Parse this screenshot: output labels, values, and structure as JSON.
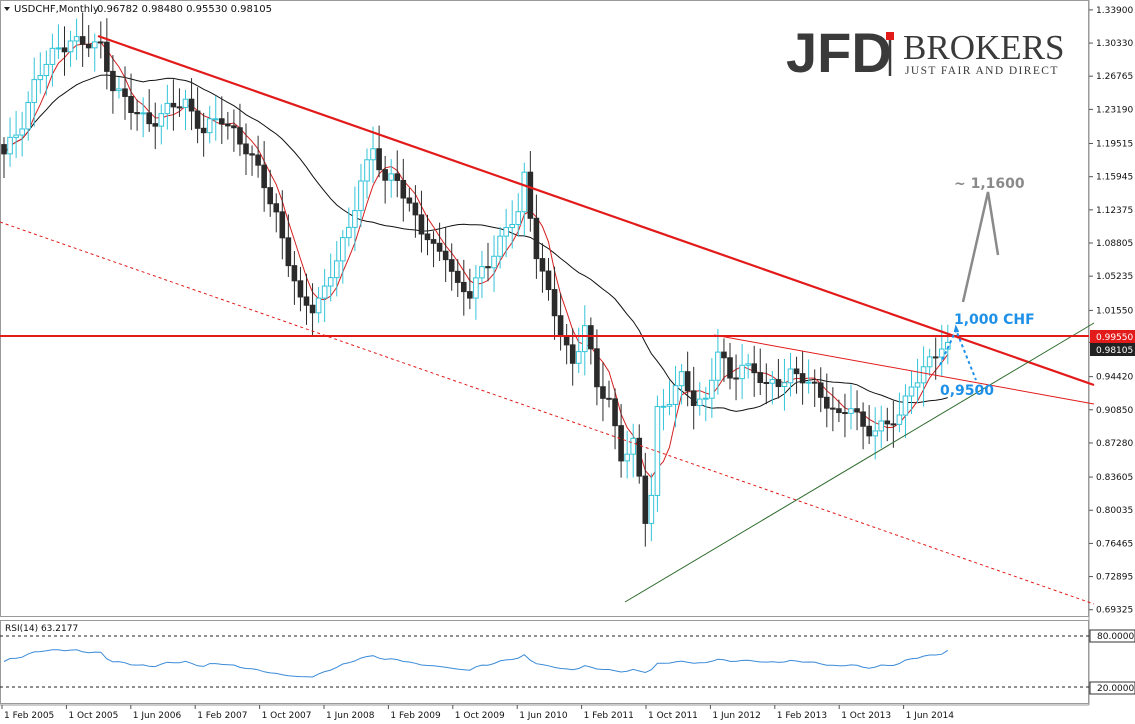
{
  "header": {
    "symbol_text": "USDCHF,Monthly",
    "ohlc_text": "0.96782 0.98480 0.95530 0.98105"
  },
  "logo": {
    "mark": "JFD",
    "name": "BROKERS",
    "tagline": "JUST FAIR AND DIRECT"
  },
  "colors": {
    "bull": "#33c4d8",
    "bear": "#2b2b2b",
    "resistance": "#e21a1a",
    "ma_fast": "#d42020",
    "ma_slow": "#111111",
    "support": "#2e6b2e",
    "rsi": "#3a8bd8",
    "annotation_blue": "#1e90e8",
    "annotation_gray": "#8a8a8a"
  },
  "chart_data": {
    "type": "candlestick",
    "price_axis": {
      "ticks": [
        "1.33900",
        "1.30330",
        "1.26765",
        "1.23190",
        "1.19515",
        "1.15945",
        "1.12375",
        "1.08805",
        "1.05235",
        "1.01550",
        "0.98105",
        "0.94420",
        "0.90850",
        "0.87280",
        "0.83605",
        "0.80035",
        "0.76465",
        "0.72895",
        "0.69325"
      ],
      "range": [
        0.6865,
        1.3475
      ],
      "marked_levels": [
        {
          "label": "0.99550",
          "value": 0.9955,
          "color": "#e21a1a"
        },
        {
          "label": "0.98105",
          "value": 0.98105,
          "color": "#222222"
        }
      ]
    },
    "time_axis": {
      "labels": [
        "1 Feb 2005",
        "1 Oct 2005",
        "1 Jun 2006",
        "1 Feb 2007",
        "1 Oct 2007",
        "1 Jun 2008",
        "1 Feb 2009",
        "1 Oct 2009",
        "1 Jun 2010",
        "1 Feb 2011",
        "1 Oct 2011",
        "1 Jun 2012",
        "1 Feb 2013",
        "1 Oct 2013",
        "1 Jun 2014"
      ]
    },
    "path_points": [
      [
        0,
        1.18
      ],
      [
        3,
        1.22
      ],
      [
        5,
        1.26
      ],
      [
        8,
        1.29
      ],
      [
        11,
        1.31
      ],
      [
        13,
        1.3
      ],
      [
        16,
        1.3
      ],
      [
        18,
        1.26
      ],
      [
        21,
        1.23
      ],
      [
        24,
        1.22
      ],
      [
        27,
        1.23
      ],
      [
        30,
        1.24
      ],
      [
        33,
        1.21
      ],
      [
        36,
        1.22
      ],
      [
        38,
        1.21
      ],
      [
        40,
        1.19
      ],
      [
        43,
        1.15
      ],
      [
        45,
        1.12
      ],
      [
        47,
        1.07
      ],
      [
        49,
        1.02
      ],
      [
        51,
        1.02
      ],
      [
        53,
        1.04
      ],
      [
        55,
        1.07
      ],
      [
        57,
        1.1
      ],
      [
        59,
        1.16
      ],
      [
        61,
        1.19
      ],
      [
        63,
        1.15
      ],
      [
        65,
        1.16
      ],
      [
        67,
        1.13
      ],
      [
        69,
        1.1
      ],
      [
        71,
        1.08
      ],
      [
        73,
        1.08
      ],
      [
        75,
        1.04
      ],
      [
        77,
        1.03
      ],
      [
        79,
        1.06
      ],
      [
        81,
        1.08
      ],
      [
        83,
        1.1
      ],
      [
        85,
        1.12
      ],
      [
        86,
        1.16
      ],
      [
        88,
        1.08
      ],
      [
        90,
        1.03
      ],
      [
        92,
        0.99
      ],
      [
        94,
        0.96
      ],
      [
        96,
        1.0
      ],
      [
        98,
        0.93
      ],
      [
        100,
        0.92
      ],
      [
        102,
        0.86
      ],
      [
        104,
        0.87
      ],
      [
        106,
        0.79
      ],
      [
        107,
        0.82
      ],
      [
        108,
        0.91
      ],
      [
        110,
        0.92
      ],
      [
        112,
        0.94
      ],
      [
        114,
        0.92
      ],
      [
        116,
        0.92
      ],
      [
        118,
        0.97
      ],
      [
        120,
        0.94
      ],
      [
        122,
        0.96
      ],
      [
        124,
        0.95
      ],
      [
        126,
        0.93
      ],
      [
        128,
        0.94
      ],
      [
        130,
        0.95
      ],
      [
        132,
        0.94
      ],
      [
        134,
        0.93
      ],
      [
        136,
        0.92
      ],
      [
        138,
        0.9
      ],
      [
        140,
        0.91
      ],
      [
        142,
        0.89
      ],
      [
        144,
        0.89
      ],
      [
        146,
        0.89
      ],
      [
        148,
        0.9
      ],
      [
        150,
        0.94
      ],
      [
        152,
        0.95
      ],
      [
        155,
        0.975
      ],
      [
        156,
        0.98105
      ]
    ],
    "rsi": {
      "label": "RSI(14) 63.2177",
      "period": 14,
      "last_value": 63.2177,
      "levels": [
        {
          "label": "80.0000",
          "value": 80
        },
        {
          "label": "20.0000",
          "value": 20
        }
      ],
      "range": [
        0,
        100
      ]
    },
    "annotations": [
      {
        "text": "1,000 CHF",
        "color": "#1e90e8"
      },
      {
        "text": "0,9500",
        "color": "#1e90e8"
      },
      {
        "text": "~ 1,1600",
        "color": "#8a8a8a"
      }
    ]
  }
}
